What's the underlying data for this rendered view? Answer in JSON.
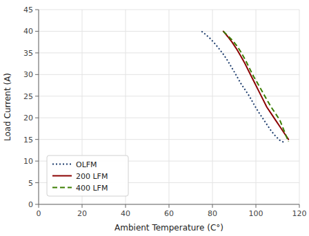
{
  "chart_data": {
    "type": "line",
    "xlabel": "Ambient Temperature (C°)",
    "ylabel": "Load Current (A)",
    "xlim": [
      0,
      120
    ],
    "ylim": [
      0,
      45
    ],
    "xticks": [
      0,
      20,
      40,
      60,
      80,
      100,
      120
    ],
    "yticks": [
      0,
      5,
      10,
      15,
      20,
      25,
      30,
      35,
      40,
      45
    ],
    "grid": true,
    "legend": "lower left",
    "series": [
      {
        "name": "OLFM",
        "color": "#1a3a6b",
        "line_style": "dotted",
        "x": [
          75,
          77,
          79,
          81,
          83,
          85,
          87,
          89,
          91,
          93,
          95,
          97,
          99,
          101,
          103,
          105,
          107,
          109,
          111,
          113
        ],
        "values": [
          40.0,
          39.2,
          38.3,
          37.2,
          36.0,
          34.7,
          33.2,
          31.5,
          29.8,
          28.0,
          26.5,
          25.0,
          23.2,
          21.5,
          20.0,
          18.5,
          17.0,
          15.8,
          14.8,
          14.3
        ]
      },
      {
        "name": "200 LFM",
        "color": "#8b0000",
        "line_style": "solid",
        "x": [
          85,
          87,
          89,
          91,
          93,
          95,
          97,
          99,
          101,
          103,
          105,
          107,
          109,
          111,
          113,
          115
        ],
        "values": [
          40.0,
          38.8,
          37.5,
          36.0,
          34.3,
          32.5,
          30.5,
          28.5,
          26.5,
          24.5,
          22.5,
          21.0,
          19.5,
          18.0,
          16.5,
          15.0
        ]
      },
      {
        "name": "400 LFM",
        "color": "#3a7d00",
        "line_style": "dashed",
        "x": [
          85,
          87,
          89,
          91,
          93,
          95,
          97,
          99,
          101,
          103,
          105,
          107,
          109,
          111,
          113,
          115
        ],
        "values": [
          40.0,
          39.0,
          38.0,
          36.8,
          35.3,
          33.5,
          31.5,
          29.5,
          27.8,
          26.0,
          24.2,
          22.5,
          21.0,
          19.5,
          17.0,
          14.5
        ]
      }
    ]
  }
}
